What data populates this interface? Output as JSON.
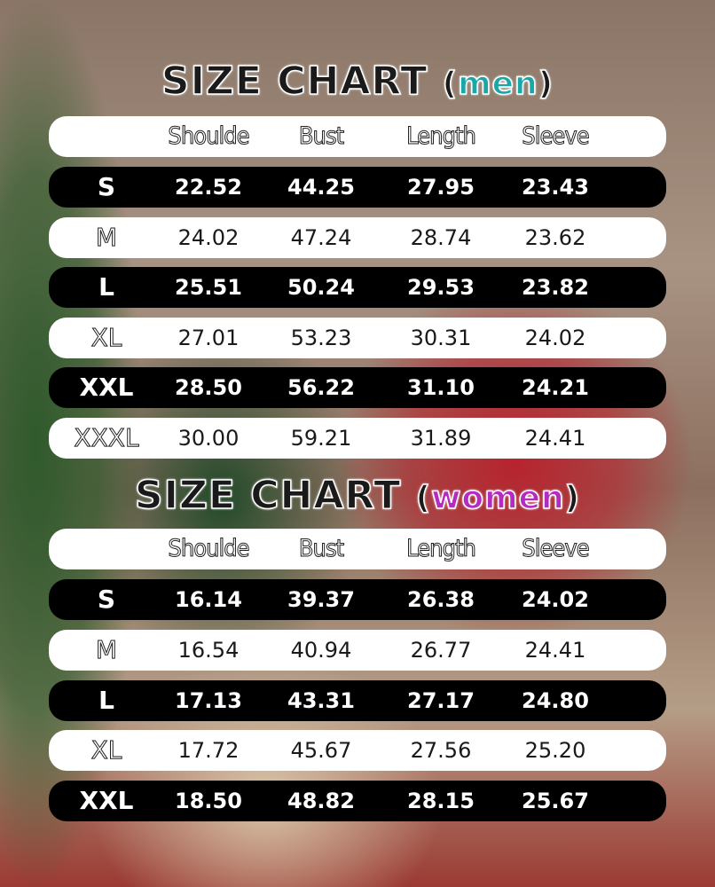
{
  "columns": [
    "Shoulde",
    "Bust",
    "Length",
    "Sleeve"
  ],
  "men": {
    "title": "SIZE CHART",
    "label": "men",
    "accent": "#1aa7a8",
    "rows": [
      {
        "size": "S",
        "values": [
          "22.52",
          "44.25",
          "27.95",
          "23.43"
        ]
      },
      {
        "size": "M",
        "values": [
          "24.02",
          "47.24",
          "28.74",
          "23.62"
        ]
      },
      {
        "size": "L",
        "values": [
          "25.51",
          "50.24",
          "29.53",
          "23.82"
        ]
      },
      {
        "size": "XL",
        "values": [
          "27.01",
          "53.23",
          "30.31",
          "24.02"
        ]
      },
      {
        "size": "XXL",
        "values": [
          "28.50",
          "56.22",
          "31.10",
          "24.21"
        ]
      },
      {
        "size": "XXXL",
        "values": [
          "30.00",
          "59.21",
          "31.89",
          "24.41"
        ]
      }
    ]
  },
  "women": {
    "title": "SIZE CHART",
    "label": "women",
    "accent": "#b32bc0",
    "rows": [
      {
        "size": "S",
        "values": [
          "16.14",
          "39.37",
          "26.38",
          "24.02"
        ]
      },
      {
        "size": "M",
        "values": [
          "16.54",
          "40.94",
          "26.77",
          "24.41"
        ]
      },
      {
        "size": "L",
        "values": [
          "17.13",
          "43.31",
          "27.17",
          "24.80"
        ]
      },
      {
        "size": "XL",
        "values": [
          "17.72",
          "45.67",
          "27.56",
          "25.20"
        ]
      },
      {
        "size": "XXL",
        "values": [
          "18.50",
          "48.82",
          "28.15",
          "25.67"
        ]
      }
    ]
  }
}
